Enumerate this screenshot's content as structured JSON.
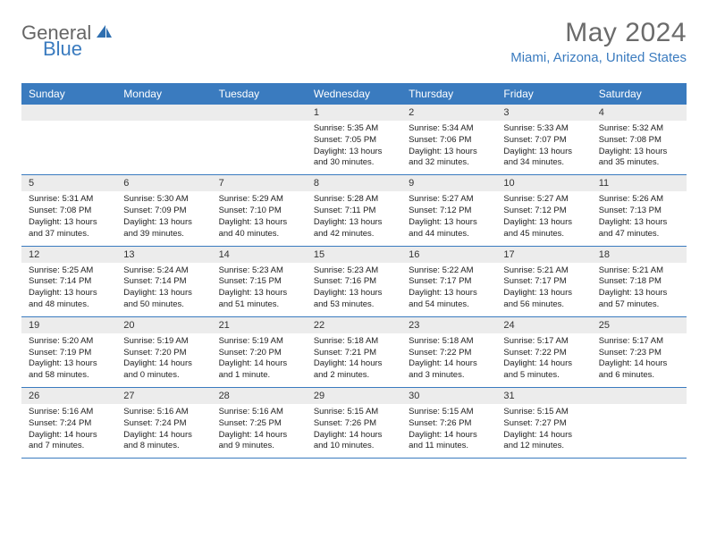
{
  "logo": {
    "part1": "General",
    "part2": "Blue"
  },
  "title": "May 2024",
  "location": "Miami, Arizona, United States",
  "colors": {
    "header_bg": "#3a7bbf",
    "header_text": "#ffffff",
    "daynum_bg": "#ececec",
    "border": "#3a7bbf",
    "title_text": "#6b6b6b",
    "location_text": "#3a7bbf"
  },
  "days_of_week": [
    "Sunday",
    "Monday",
    "Tuesday",
    "Wednesday",
    "Thursday",
    "Friday",
    "Saturday"
  ],
  "weeks": [
    {
      "nums": [
        "",
        "",
        "",
        "1",
        "2",
        "3",
        "4"
      ],
      "cells": [
        "",
        "",
        "",
        "Sunrise: 5:35 AM\nSunset: 7:05 PM\nDaylight: 13 hours and 30 minutes.",
        "Sunrise: 5:34 AM\nSunset: 7:06 PM\nDaylight: 13 hours and 32 minutes.",
        "Sunrise: 5:33 AM\nSunset: 7:07 PM\nDaylight: 13 hours and 34 minutes.",
        "Sunrise: 5:32 AM\nSunset: 7:08 PM\nDaylight: 13 hours and 35 minutes."
      ]
    },
    {
      "nums": [
        "5",
        "6",
        "7",
        "8",
        "9",
        "10",
        "11"
      ],
      "cells": [
        "Sunrise: 5:31 AM\nSunset: 7:08 PM\nDaylight: 13 hours and 37 minutes.",
        "Sunrise: 5:30 AM\nSunset: 7:09 PM\nDaylight: 13 hours and 39 minutes.",
        "Sunrise: 5:29 AM\nSunset: 7:10 PM\nDaylight: 13 hours and 40 minutes.",
        "Sunrise: 5:28 AM\nSunset: 7:11 PM\nDaylight: 13 hours and 42 minutes.",
        "Sunrise: 5:27 AM\nSunset: 7:12 PM\nDaylight: 13 hours and 44 minutes.",
        "Sunrise: 5:27 AM\nSunset: 7:12 PM\nDaylight: 13 hours and 45 minutes.",
        "Sunrise: 5:26 AM\nSunset: 7:13 PM\nDaylight: 13 hours and 47 minutes."
      ]
    },
    {
      "nums": [
        "12",
        "13",
        "14",
        "15",
        "16",
        "17",
        "18"
      ],
      "cells": [
        "Sunrise: 5:25 AM\nSunset: 7:14 PM\nDaylight: 13 hours and 48 minutes.",
        "Sunrise: 5:24 AM\nSunset: 7:14 PM\nDaylight: 13 hours and 50 minutes.",
        "Sunrise: 5:23 AM\nSunset: 7:15 PM\nDaylight: 13 hours and 51 minutes.",
        "Sunrise: 5:23 AM\nSunset: 7:16 PM\nDaylight: 13 hours and 53 minutes.",
        "Sunrise: 5:22 AM\nSunset: 7:17 PM\nDaylight: 13 hours and 54 minutes.",
        "Sunrise: 5:21 AM\nSunset: 7:17 PM\nDaylight: 13 hours and 56 minutes.",
        "Sunrise: 5:21 AM\nSunset: 7:18 PM\nDaylight: 13 hours and 57 minutes."
      ]
    },
    {
      "nums": [
        "19",
        "20",
        "21",
        "22",
        "23",
        "24",
        "25"
      ],
      "cells": [
        "Sunrise: 5:20 AM\nSunset: 7:19 PM\nDaylight: 13 hours and 58 minutes.",
        "Sunrise: 5:19 AM\nSunset: 7:20 PM\nDaylight: 14 hours and 0 minutes.",
        "Sunrise: 5:19 AM\nSunset: 7:20 PM\nDaylight: 14 hours and 1 minute.",
        "Sunrise: 5:18 AM\nSunset: 7:21 PM\nDaylight: 14 hours and 2 minutes.",
        "Sunrise: 5:18 AM\nSunset: 7:22 PM\nDaylight: 14 hours and 3 minutes.",
        "Sunrise: 5:17 AM\nSunset: 7:22 PM\nDaylight: 14 hours and 5 minutes.",
        "Sunrise: 5:17 AM\nSunset: 7:23 PM\nDaylight: 14 hours and 6 minutes."
      ]
    },
    {
      "nums": [
        "26",
        "27",
        "28",
        "29",
        "30",
        "31",
        ""
      ],
      "cells": [
        "Sunrise: 5:16 AM\nSunset: 7:24 PM\nDaylight: 14 hours and 7 minutes.",
        "Sunrise: 5:16 AM\nSunset: 7:24 PM\nDaylight: 14 hours and 8 minutes.",
        "Sunrise: 5:16 AM\nSunset: 7:25 PM\nDaylight: 14 hours and 9 minutes.",
        "Sunrise: 5:15 AM\nSunset: 7:26 PM\nDaylight: 14 hours and 10 minutes.",
        "Sunrise: 5:15 AM\nSunset: 7:26 PM\nDaylight: 14 hours and 11 minutes.",
        "Sunrise: 5:15 AM\nSunset: 7:27 PM\nDaylight: 14 hours and 12 minutes.",
        ""
      ]
    }
  ]
}
